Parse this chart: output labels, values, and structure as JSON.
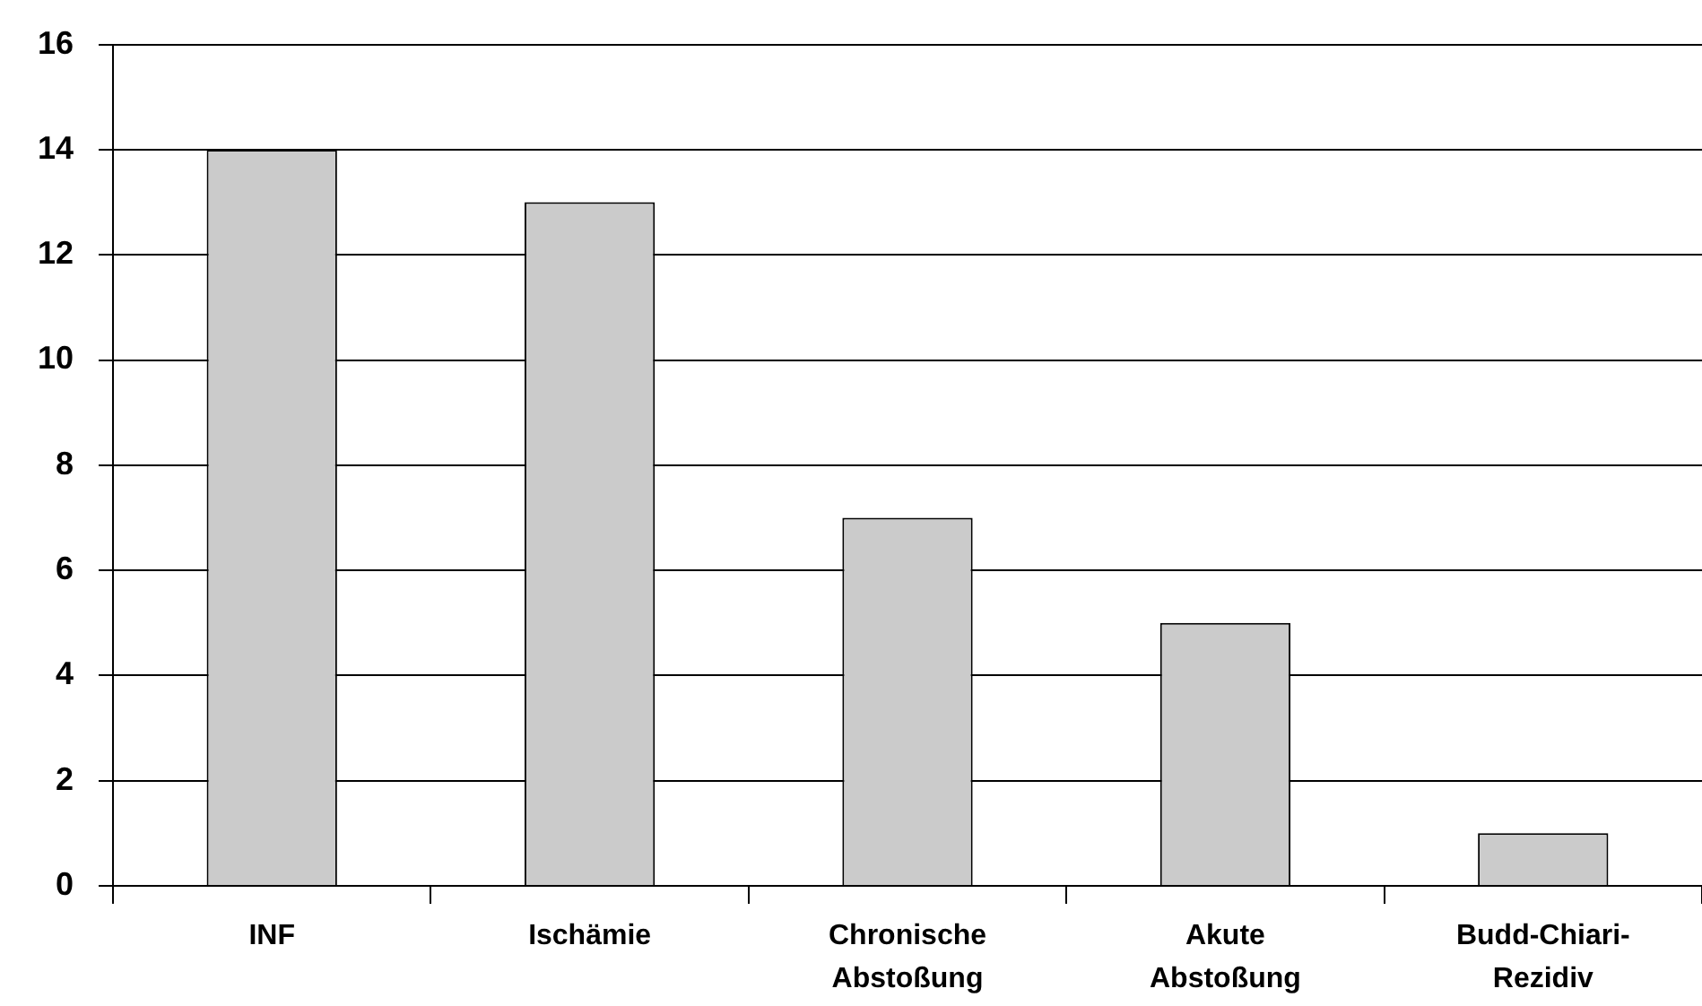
{
  "chart_data": {
    "type": "bar",
    "categories": [
      "INF",
      "Ischämie",
      "Chronische Abstoßung",
      "Akute Abstoßung",
      "Budd-Chiari-Rezidiv"
    ],
    "values": [
      14,
      13,
      7,
      5,
      1
    ],
    "color": "#cbcbcb",
    "ylim": [
      0,
      16
    ],
    "yticks": [
      0,
      2,
      4,
      6,
      8,
      10,
      12,
      14,
      16
    ],
    "grid": "y",
    "legend": false
  }
}
